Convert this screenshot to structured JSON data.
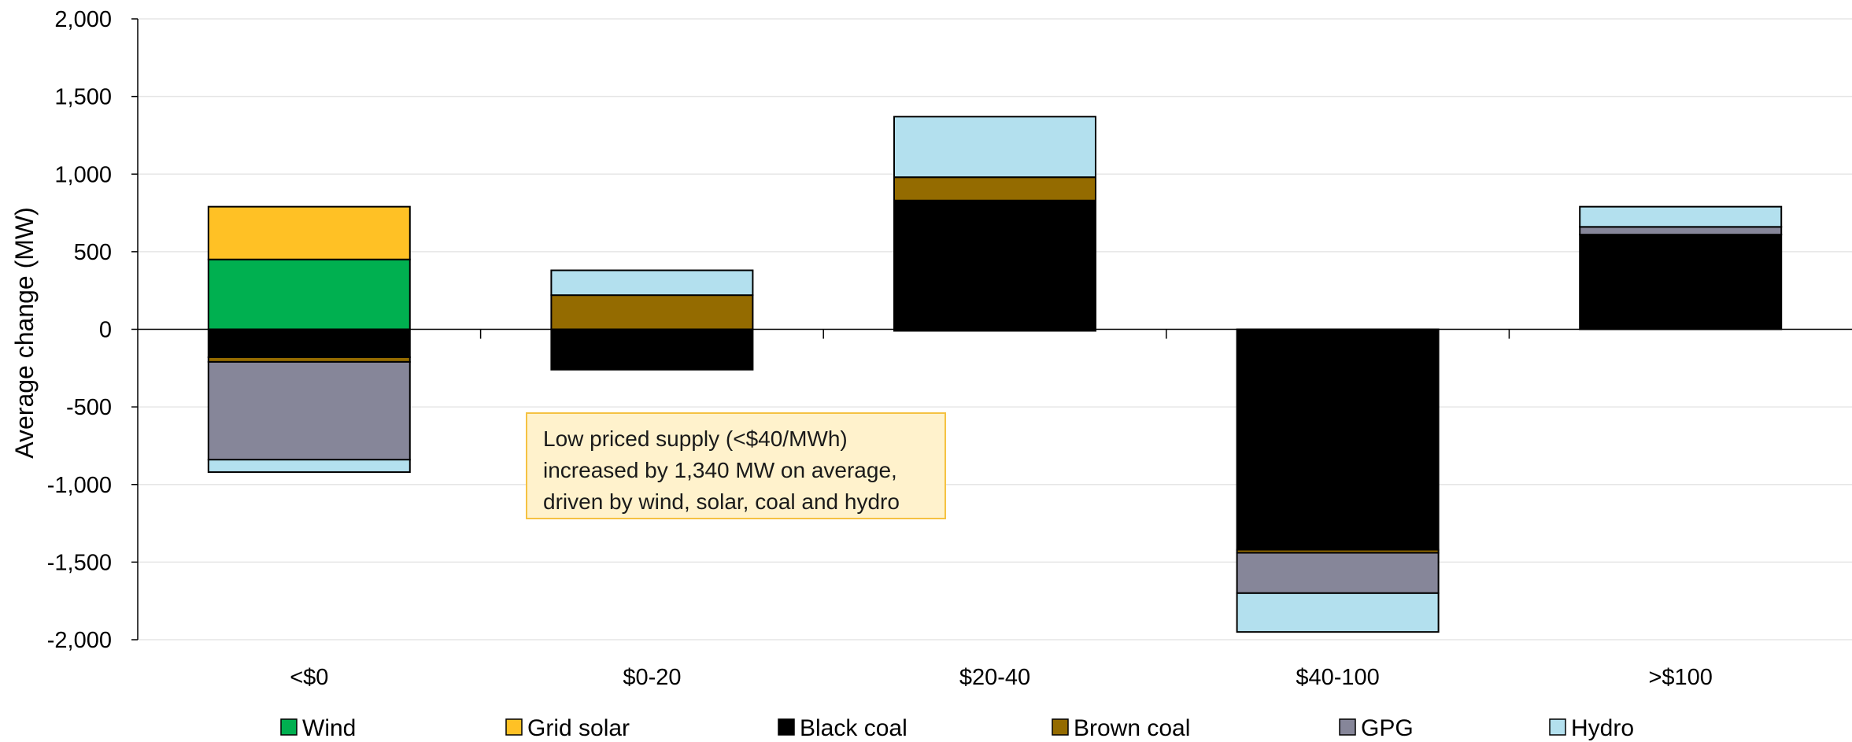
{
  "chart_data": {
    "type": "bar",
    "stacked": true,
    "categories": [
      "<$0",
      "$0-20",
      "$20-40",
      "$40-100",
      ">$100"
    ],
    "ylabel": "Average change (MW)",
    "ylim": [
      -2000,
      2000
    ],
    "yticks": [
      2000,
      1500,
      1000,
      500,
      0,
      -500,
      -1000,
      -1500,
      -2000
    ],
    "ytick_labels": [
      "2,000",
      "1,500",
      "1,000",
      "500",
      "0",
      "-500",
      "-1,000",
      "-1,500",
      "-2,000"
    ],
    "grid": true,
    "legend_position": "bottom",
    "series": [
      {
        "name": "Wind",
        "color": "#00b050",
        "values": [
          450,
          0,
          0,
          0,
          0
        ]
      },
      {
        "name": "Grid solar",
        "color": "#ffc125",
        "values": [
          340,
          0,
          0,
          0,
          0
        ]
      },
      {
        "name": "Black coal",
        "color": "#000000",
        "values": [
          -180,
          -260,
          830,
          -1420,
          610
        ]
      },
      {
        "name": "Brown coal",
        "color": "#946b00",
        "values": [
          -30,
          220,
          150,
          -20,
          0
        ]
      },
      {
        "name": "GPG",
        "color": "#868699",
        "values": [
          -630,
          0,
          -10,
          -260,
          50
        ]
      },
      {
        "name": "Hydro",
        "color": "#b3e0ee",
        "values": [
          -80,
          160,
          390,
          -250,
          130
        ]
      }
    ],
    "annotation": "Low priced supply (<$40/MWh)\nincreased by 1,340 MW on average,\ndriven by wind, solar, coal and hydro"
  }
}
